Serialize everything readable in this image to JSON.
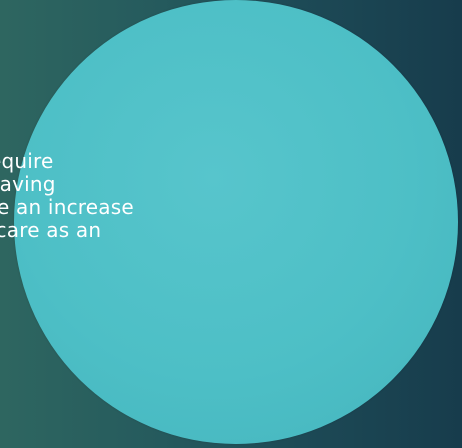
{
  "slide": {
    "text_lines": [
      "equire",
      "saving",
      "re an increase",
      " care as an"
    ],
    "colors": {
      "background_left": "#2e6660",
      "background_right": "#173c4c",
      "circle_fill": "#4dbfc6",
      "text": "#ffffff"
    }
  }
}
